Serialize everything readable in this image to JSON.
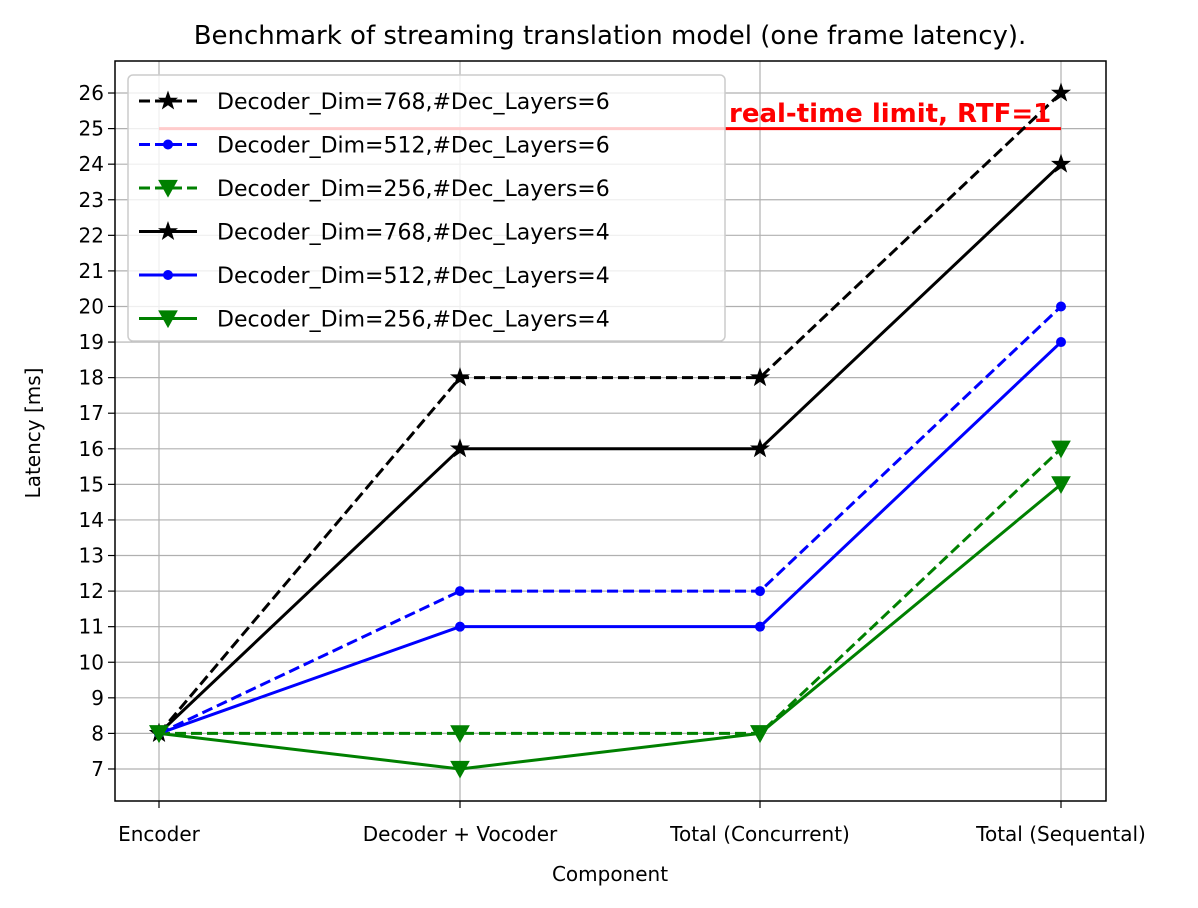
{
  "chart_data": {
    "type": "line",
    "title": "Benchmark of streaming translation model (one frame latency).",
    "xlabel": "Component",
    "ylabel": "Latency [ms]",
    "categories": [
      "Encoder",
      "Decoder + Vocoder",
      "Total (Concurrent)",
      "Total (Sequental)"
    ],
    "ylim": [
      6.1,
      26.9
    ],
    "yticks": [
      7,
      8,
      9,
      10,
      11,
      12,
      13,
      14,
      15,
      16,
      17,
      18,
      19,
      20,
      21,
      22,
      23,
      24,
      25,
      26
    ],
    "grid": true,
    "legend_position": "top-left",
    "series": [
      {
        "name": "Decoder_Dim=768,#Dec_Layers=6",
        "values": [
          8,
          18,
          18,
          26
        ],
        "color": "#000000",
        "linestyle": "dashed",
        "marker": "star"
      },
      {
        "name": "Decoder_Dim=512,#Dec_Layers=6",
        "values": [
          8,
          12,
          12,
          20
        ],
        "color": "#0000ff",
        "linestyle": "dashed",
        "marker": "dot"
      },
      {
        "name": "Decoder_Dim=256,#Dec_Layers=6",
        "values": [
          8,
          8,
          8,
          16
        ],
        "color": "#008000",
        "linestyle": "dashed",
        "marker": "triangle-down"
      },
      {
        "name": "Decoder_Dim=768,#Dec_Layers=4",
        "values": [
          8,
          16,
          16,
          24
        ],
        "color": "#000000",
        "linestyle": "solid",
        "marker": "star"
      },
      {
        "name": "Decoder_Dim=512,#Dec_Layers=4",
        "values": [
          8,
          11,
          11,
          19
        ],
        "color": "#0000ff",
        "linestyle": "solid",
        "marker": "dot"
      },
      {
        "name": "Decoder_Dim=256,#Dec_Layers=4",
        "values": [
          8,
          7,
          8,
          15
        ],
        "color": "#008000",
        "linestyle": "solid",
        "marker": "triangle-down"
      }
    ],
    "annotation": {
      "text": "real-time limit, RTF=1",
      "y": 25,
      "x_from_category": 0,
      "x_to_category": 3,
      "color": "#ff0000"
    }
  }
}
